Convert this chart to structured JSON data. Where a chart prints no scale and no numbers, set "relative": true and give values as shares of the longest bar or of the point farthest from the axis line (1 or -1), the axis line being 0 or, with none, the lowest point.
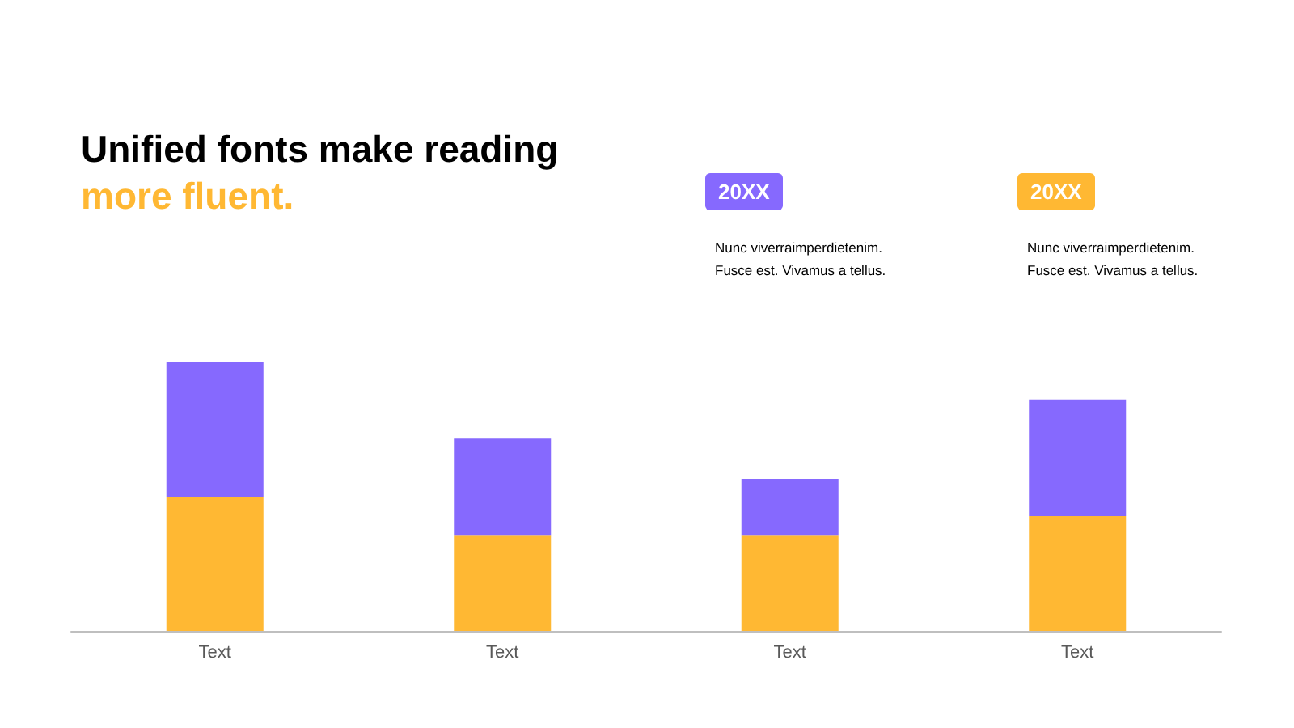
{
  "chart_data": {
    "type": "bar",
    "title": "Unified fonts make reading",
    "subtitle": "more fluent.",
    "categories": [
      "Text",
      "Text",
      "Text",
      "Text"
    ],
    "stacked": true,
    "relative": true,
    "legend": "top right",
    "series": [
      {
        "name": "20XX",
        "color": "#ffb833",
        "values": [
          0.5,
          0.355,
          0.355,
          0.428
        ]
      },
      {
        "name": "20XX",
        "color": "#8669fe",
        "values": [
          0.5,
          0.361,
          0.211,
          0.434
        ]
      }
    ],
    "annotations": [
      "Nunc  viverraimperdietenim.\nFusce est. Vivamus  a tellus.",
      "Nunc  viverraimperdietenim.\nFusce est. Vivamus  a tellus."
    ]
  }
}
